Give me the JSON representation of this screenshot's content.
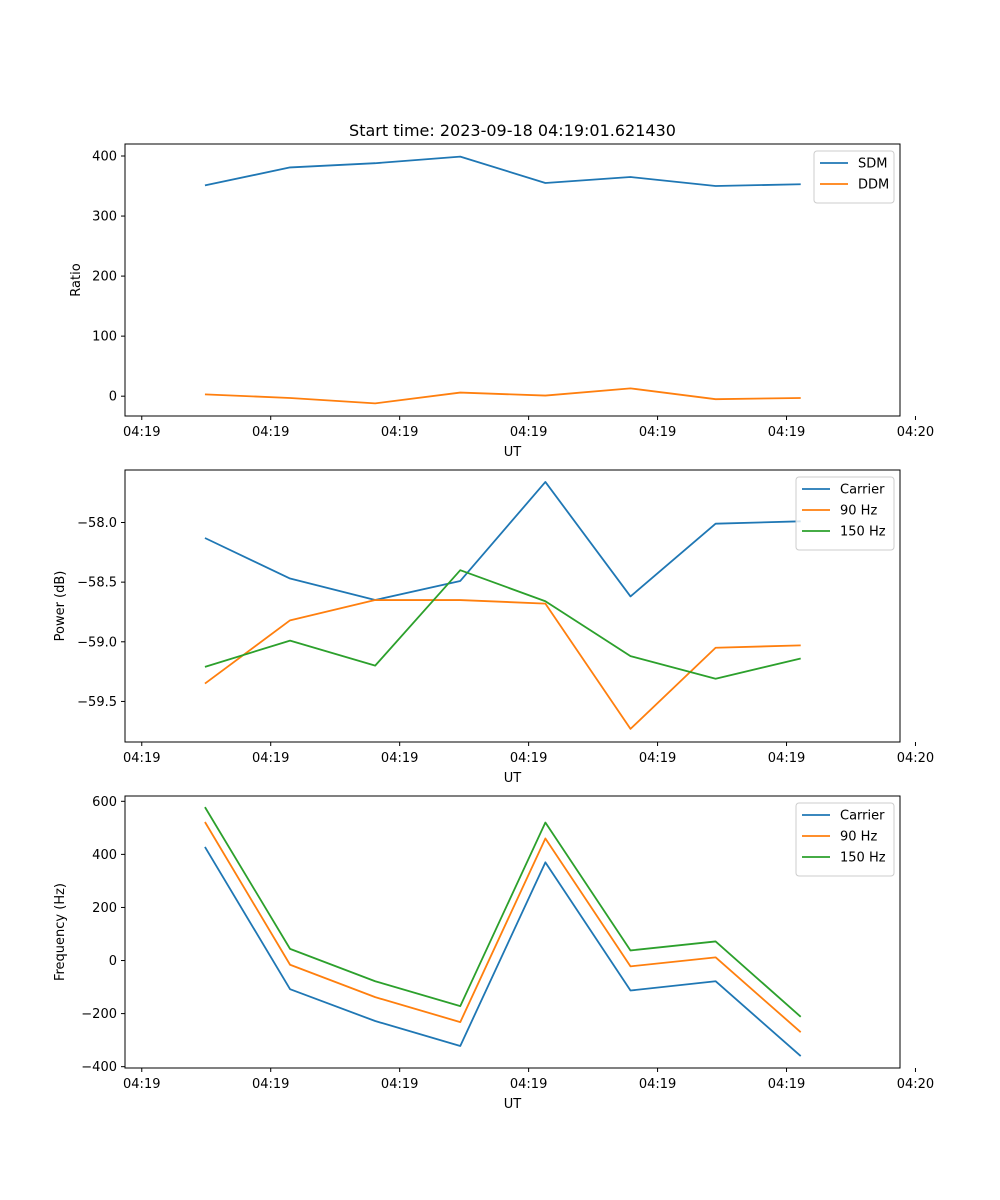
{
  "colors": {
    "blue": "#1f77b4",
    "orange": "#ff7f0e",
    "green": "#2ca02c"
  },
  "chart_data": [
    {
      "type": "line",
      "title": "Start time: 2023-09-18 04:19:01.621430",
      "xlabel": "UT",
      "ylabel": "Ratio",
      "legend_position": "top-right",
      "x_tick_labels": [
        "04:19",
        "04:19",
        "04:19",
        "04:19",
        "04:19",
        "04:19",
        "04:20"
      ],
      "x_tick_values": [
        0,
        1,
        2,
        3,
        4,
        5,
        6
      ],
      "xlim": [
        -0.13,
        5.88
      ],
      "x": [
        0.49,
        1.15,
        1.81,
        2.47,
        3.13,
        3.79,
        4.45,
        5.11
      ],
      "ylim": [
        -33,
        420
      ],
      "y_ticks": [
        0,
        100,
        200,
        300,
        400
      ],
      "y_tick_labels": [
        "0",
        "100",
        "200",
        "300",
        "400"
      ],
      "series": [
        {
          "name": "SDM",
          "color": "#1f77b4",
          "values": [
            351,
            381,
            388,
            399,
            355,
            365,
            350,
            353
          ]
        },
        {
          "name": "DDM",
          "color": "#ff7f0e",
          "values": [
            3,
            -3,
            -12,
            6,
            1,
            13,
            -5,
            -3
          ]
        }
      ]
    },
    {
      "type": "line",
      "title": "",
      "xlabel": "UT",
      "ylabel": "Power (dB)",
      "legend_position": "top-right",
      "x_tick_labels": [
        "04:19",
        "04:19",
        "04:19",
        "04:19",
        "04:19",
        "04:19",
        "04:20"
      ],
      "x_tick_values": [
        0,
        1,
        2,
        3,
        4,
        5,
        6
      ],
      "xlim": [
        -0.13,
        5.88
      ],
      "x": [
        0.49,
        1.15,
        1.81,
        2.47,
        3.13,
        3.79,
        4.45,
        5.11
      ],
      "ylim": [
        -59.84,
        -57.56
      ],
      "y_ticks": [
        -59.5,
        -59.0,
        -58.5,
        -58.0
      ],
      "y_tick_labels": [
        "−59.5",
        "−59.0",
        "−58.5",
        "−58.0"
      ],
      "series": [
        {
          "name": "Carrier",
          "color": "#1f77b4",
          "values": [
            -58.13,
            -58.47,
            -58.65,
            -58.49,
            -57.66,
            -58.62,
            -58.01,
            -57.99
          ]
        },
        {
          "name": "90 Hz",
          "color": "#ff7f0e",
          "values": [
            -59.35,
            -58.82,
            -58.65,
            -58.65,
            -58.68,
            -59.73,
            -59.05,
            -59.03
          ]
        },
        {
          "name": "150 Hz",
          "color": "#2ca02c",
          "values": [
            -59.21,
            -58.99,
            -59.2,
            -58.4,
            -58.66,
            -59.12,
            -59.31,
            -59.14
          ]
        }
      ]
    },
    {
      "type": "line",
      "title": "",
      "xlabel": "UT",
      "ylabel": "Frequency (Hz)",
      "legend_position": "top-right",
      "x_tick_labels": [
        "04:19",
        "04:19",
        "04:19",
        "04:19",
        "04:19",
        "04:19",
        "04:20"
      ],
      "x_tick_values": [
        0,
        1,
        2,
        3,
        4,
        5,
        6
      ],
      "xlim": [
        -0.13,
        5.88
      ],
      "x": [
        0.49,
        1.15,
        1.81,
        2.47,
        3.13,
        3.79,
        4.45,
        5.11
      ],
      "ylim": [
        -405,
        620
      ],
      "y_ticks": [
        -400,
        -200,
        0,
        200,
        400,
        600
      ],
      "y_tick_labels": [
        "−400",
        "−200",
        "0",
        "200",
        "400",
        "600"
      ],
      "series": [
        {
          "name": "Carrier",
          "color": "#1f77b4",
          "values": [
            428,
            -108,
            -228,
            -322,
            370,
            -113,
            -78,
            -360
          ]
        },
        {
          "name": "90 Hz",
          "color": "#ff7f0e",
          "values": [
            522,
            -16,
            -138,
            -232,
            460,
            -22,
            12,
            -270
          ]
        },
        {
          "name": "150 Hz",
          "color": "#2ca02c",
          "values": [
            578,
            44,
            -78,
            -172,
            520,
            38,
            72,
            -212
          ]
        }
      ]
    }
  ]
}
